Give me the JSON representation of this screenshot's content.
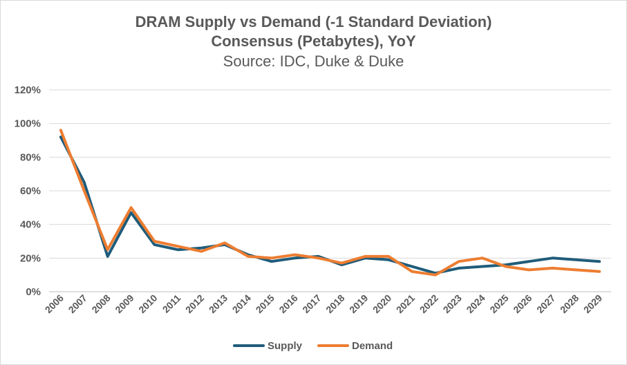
{
  "chart_data": {
    "type": "line",
    "title": "DRAM Supply vs Demand (-1 Standard Deviation)",
    "subtitle": "Consensus (Petabytes), YoY",
    "source": "Source: IDC, Duke & Duke",
    "xlabel": "",
    "ylabel": "",
    "ylim": [
      0,
      120
    ],
    "y_ticks": [
      "0%",
      "20%",
      "40%",
      "60%",
      "80%",
      "100%",
      "120%"
    ],
    "grid": true,
    "legend_position": "bottom",
    "categories": [
      "2006",
      "2007",
      "2008",
      "2009",
      "2010",
      "2011",
      "2012",
      "2013",
      "2014",
      "2015",
      "2016",
      "2017",
      "2018",
      "2019",
      "2020",
      "2021",
      "2022",
      "2023",
      "2024",
      "2025",
      "2026",
      "2027",
      "2028",
      "2029"
    ],
    "series": [
      {
        "name": "Supply",
        "color": "#1f5c7a",
        "values": [
          92,
          65,
          21,
          47,
          28,
          25,
          26,
          28,
          22,
          18,
          20,
          21,
          16,
          20,
          19,
          15,
          11,
          14,
          15,
          16,
          18,
          20,
          19,
          18
        ]
      },
      {
        "name": "Demand",
        "color": "#ed7d31",
        "values": [
          96,
          60,
          25,
          50,
          30,
          27,
          24,
          29,
          21,
          20,
          22,
          20,
          17,
          21,
          21,
          12,
          10,
          18,
          20,
          15,
          13,
          14,
          13,
          12
        ]
      }
    ]
  }
}
